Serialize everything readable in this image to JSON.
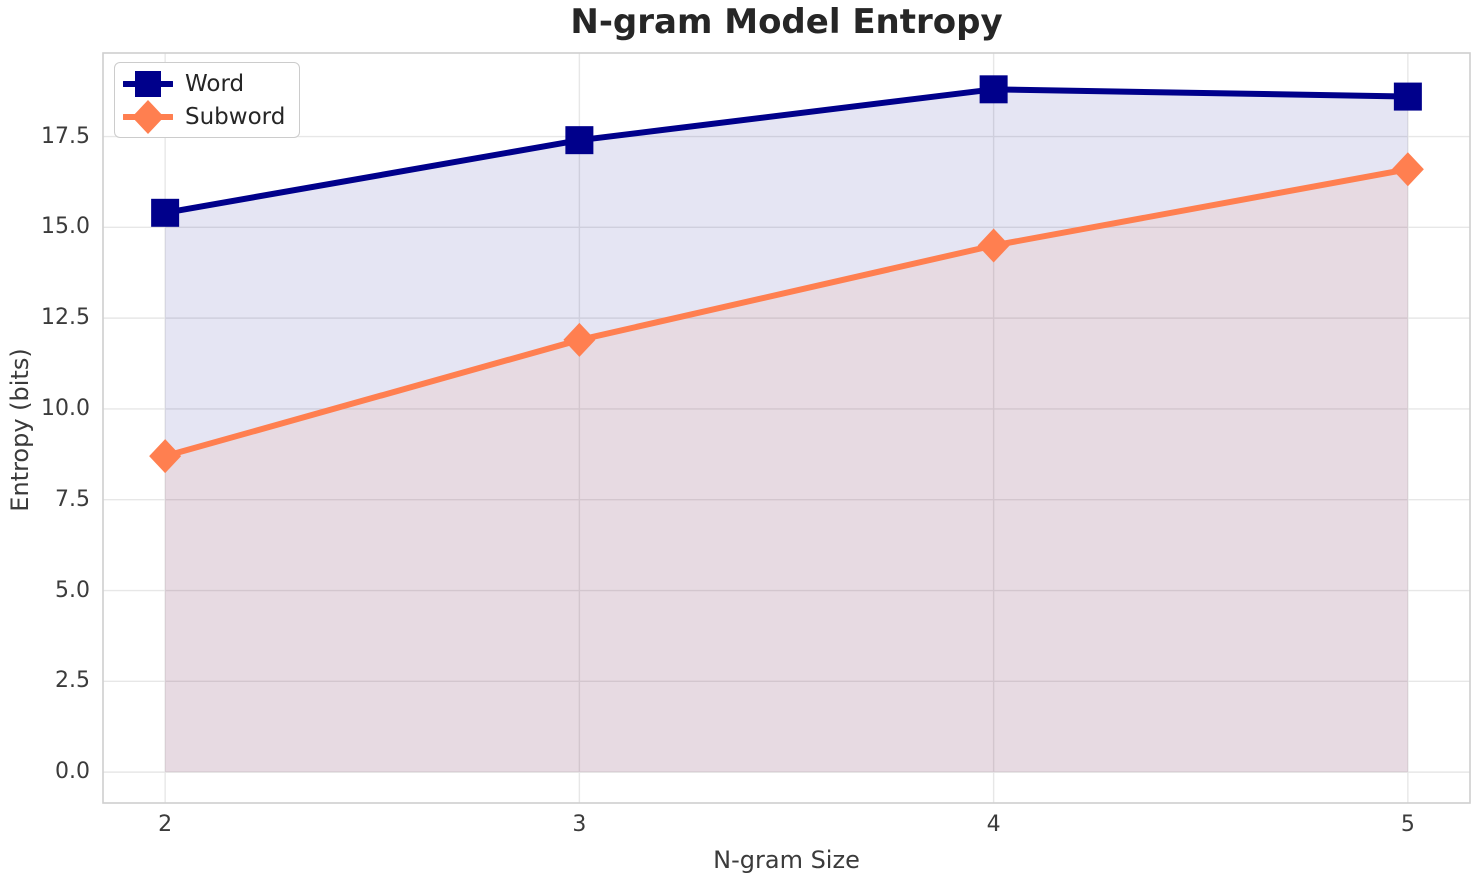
{
  "figure": {
    "background": "#ffffff"
  },
  "chart_data": {
    "type": "line",
    "title": "N-gram Model Entropy",
    "xlabel": "N-gram Size",
    "ylabel": "Entropy (bits)",
    "x": [
      2,
      3,
      4,
      5
    ],
    "series": [
      {
        "name": "Word",
        "values": [
          15.4,
          17.4,
          18.8,
          18.6
        ],
        "color": "#00008B",
        "marker": "square",
        "fill_to_zero": true,
        "fill_opacity": 0.1
      },
      {
        "name": "Subword",
        "values": [
          8.7,
          11.9,
          14.5,
          16.6
        ],
        "color": "#FF7F50",
        "marker": "diamond",
        "fill_to_zero": true,
        "fill_opacity": 0.1
      }
    ],
    "xticks": [
      2,
      3,
      4,
      5
    ],
    "xtick_labels": [
      "2",
      "3",
      "4",
      "5"
    ],
    "yticks": [
      0,
      2.5,
      5,
      7.5,
      10,
      12.5,
      15,
      17.5
    ],
    "ytick_labels": [
      "0.0",
      "2.5",
      "5.0",
      "7.5",
      "10.0",
      "12.5",
      "15.0",
      "17.5"
    ],
    "xlim": [
      1.85,
      5.15
    ],
    "ylim": [
      -0.85,
      19.8
    ],
    "grid": true,
    "legend_position": "upper-left"
  },
  "style": {
    "grid_color": "#e7e7e7",
    "spine_color": "#cfcfcf",
    "title_color": "#262626",
    "axis_label_color": "#3b3b3b",
    "tick_label_color": "#3b3b3b",
    "legend_border_color": "#cccccc",
    "legend_background": "#ffffff",
    "legend_text_color": "#262626"
  }
}
